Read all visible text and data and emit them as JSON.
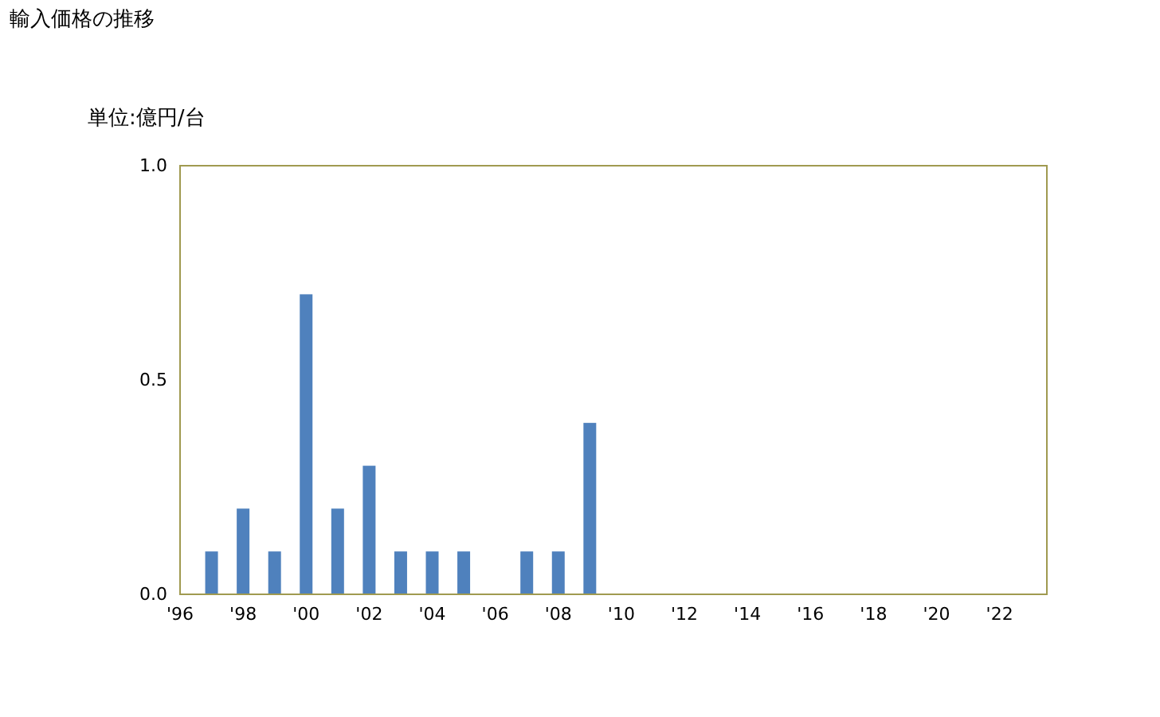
{
  "chart_data": {
    "type": "bar",
    "title": "輸入価格の推移",
    "ylabel": "単位:億円/台",
    "categories": [
      "'96",
      null,
      "'98",
      null,
      "'00",
      null,
      "'02",
      null,
      "'04",
      null,
      "'06",
      null,
      "'08",
      null,
      "'10",
      null,
      "'12",
      null,
      "'14",
      null,
      "'16",
      null,
      "'18",
      null,
      "'20",
      null,
      "'22",
      null
    ],
    "series": [
      {
        "color": "#4f81bd",
        "values": [
          null,
          0.1,
          0.2,
          0.1,
          0.7,
          0.2,
          0.3,
          0.1,
          0.1,
          0.1,
          null,
          0.1,
          0.1,
          0.4,
          null,
          null,
          null,
          null,
          null,
          null,
          null,
          null,
          null,
          null,
          null,
          null,
          null,
          null
        ]
      }
    ],
    "ylim": [
      0,
      1
    ],
    "yticks": [
      {
        "value": 0,
        "label": "0.0"
      },
      {
        "value": 0.5,
        "label": "0.5"
      },
      {
        "value": 1,
        "label": "1.0"
      }
    ],
    "grid": false
  }
}
